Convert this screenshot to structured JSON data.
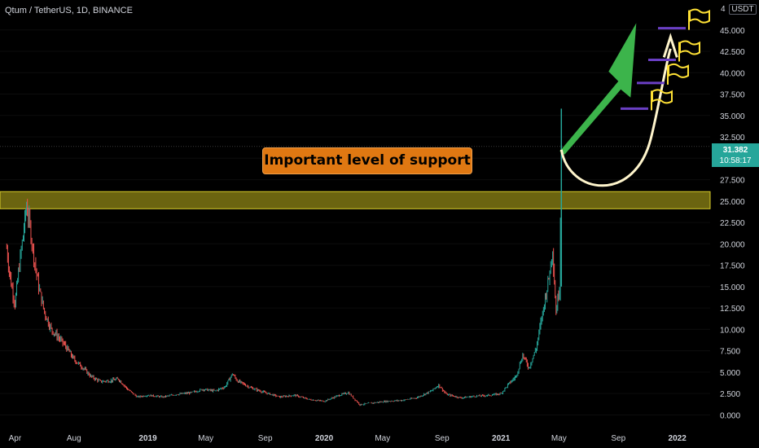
{
  "header": {
    "title": "Qtum / TetherUS, 1D, BINANCE",
    "currency_prefix": "4",
    "currency_unit": "USDT"
  },
  "price_badge": {
    "price": "31.382",
    "countdown": "10:58:17"
  },
  "annotation": {
    "text": "Important level of support"
  },
  "colors": {
    "up": "#26a69a",
    "down": "#ef5350",
    "support_zone": "#6b6410",
    "support_border": "#d8cc2a",
    "arrow_green": "#3cb44b",
    "target_lines": "#6a3fc4",
    "flag": "#ffe135",
    "callout": "#e07812",
    "axis_text": "#d1d4dc"
  },
  "chart_data": {
    "type": "candlestick",
    "title": "Qtum / TetherUS, 1D, BINANCE",
    "y_axis": {
      "ticks": [
        "0.000",
        "2.500",
        "5.000",
        "7.500",
        "10.000",
        "12.500",
        "15.000",
        "17.500",
        "20.000",
        "22.500",
        "25.000",
        "27.500",
        "30.000",
        "32.500",
        "35.000",
        "37.500",
        "40.000",
        "42.500",
        "45.000"
      ],
      "range": [
        -1.2,
        48.5
      ]
    },
    "x_axis": {
      "ticks": [
        "Apr",
        "Aug",
        "2019",
        "May",
        "Sep",
        "2020",
        "May",
        "Sep",
        "2021",
        "May",
        "Sep",
        "2022"
      ],
      "range": [
        "2018-03-01",
        "2022-03-10"
      ]
    },
    "last_price": 31.382,
    "support_zone": [
      24.1,
      26.1
    ],
    "targets": [
      35.8,
      38.8,
      41.5,
      45.2
    ],
    "series_close": [
      [
        "2018-03-15",
        19.5
      ],
      [
        "2018-03-22",
        16.0
      ],
      [
        "2018-04-01",
        13.0
      ],
      [
        "2018-04-10",
        17.5
      ],
      [
        "2018-04-18",
        21.0
      ],
      [
        "2018-04-25",
        24.5
      ],
      [
        "2018-05-02",
        22.0
      ],
      [
        "2018-05-10",
        18.5
      ],
      [
        "2018-05-20",
        15.0
      ],
      [
        "2018-06-01",
        12.0
      ],
      [
        "2018-06-15",
        10.0
      ],
      [
        "2018-07-01",
        9.0
      ],
      [
        "2018-07-15",
        8.0
      ],
      [
        "2018-08-01",
        6.5
      ],
      [
        "2018-08-20",
        5.5
      ],
      [
        "2018-09-05",
        4.5
      ],
      [
        "2018-09-25",
        3.9
      ],
      [
        "2018-10-15",
        4.0
      ],
      [
        "2018-11-01",
        4.2
      ],
      [
        "2018-11-20",
        3.0
      ],
      [
        "2018-12-10",
        2.1
      ],
      [
        "2019-01-01",
        2.3
      ],
      [
        "2019-02-01",
        2.1
      ],
      [
        "2019-03-01",
        2.4
      ],
      [
        "2019-04-01",
        2.6
      ],
      [
        "2019-04-25",
        3.0
      ],
      [
        "2019-05-20",
        2.8
      ],
      [
        "2019-06-10",
        3.3
      ],
      [
        "2019-06-25",
        4.8
      ],
      [
        "2019-07-05",
        4.0
      ],
      [
        "2019-08-01",
        3.2
      ],
      [
        "2019-09-01",
        2.6
      ],
      [
        "2019-10-01",
        2.1
      ],
      [
        "2019-11-01",
        2.3
      ],
      [
        "2019-12-01",
        1.8
      ],
      [
        "2020-01-01",
        1.6
      ],
      [
        "2020-02-01",
        2.3
      ],
      [
        "2020-02-20",
        2.6
      ],
      [
        "2020-03-15",
        1.2
      ],
      [
        "2020-04-10",
        1.4
      ],
      [
        "2020-05-10",
        1.6
      ],
      [
        "2020-06-10",
        1.7
      ],
      [
        "2020-07-10",
        2.0
      ],
      [
        "2020-08-10",
        2.8
      ],
      [
        "2020-08-25",
        3.5
      ],
      [
        "2020-09-10",
        2.4
      ],
      [
        "2020-10-10",
        2.0
      ],
      [
        "2020-11-10",
        2.2
      ],
      [
        "2020-12-10",
        2.3
      ],
      [
        "2021-01-01",
        2.5
      ],
      [
        "2021-01-15",
        3.5
      ],
      [
        "2021-02-01",
        4.5
      ],
      [
        "2021-02-15",
        7.0
      ],
      [
        "2021-02-28",
        5.5
      ],
      [
        "2021-03-15",
        7.8
      ],
      [
        "2021-03-30",
        12.5
      ],
      [
        "2021-04-10",
        16.0
      ],
      [
        "2021-04-18",
        19.5
      ],
      [
        "2021-04-25",
        12.0
      ],
      [
        "2021-05-02",
        15.0
      ],
      [
        "2021-05-06",
        31.382
      ]
    ]
  }
}
